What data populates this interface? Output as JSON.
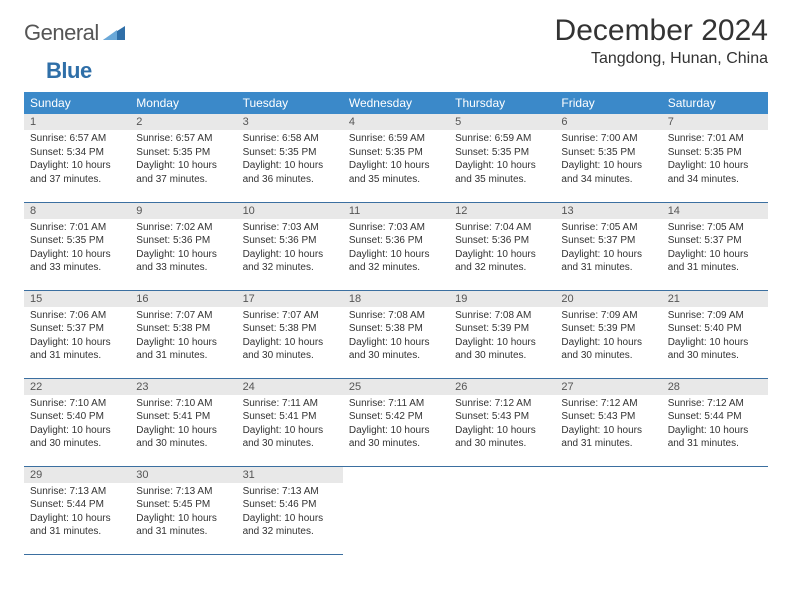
{
  "logo": {
    "word1": "General",
    "word2": "Blue"
  },
  "title": "December 2024",
  "location": "Tangdong, Hunan, China",
  "colors": {
    "header_bg": "#3b89c9",
    "header_text": "#ffffff",
    "daynum_bg": "#e8e8e8",
    "rule": "#3b6fa0",
    "logo_blue": "#2f6fa8"
  },
  "weekdays": [
    "Sunday",
    "Monday",
    "Tuesday",
    "Wednesday",
    "Thursday",
    "Friday",
    "Saturday"
  ],
  "weeks": [
    [
      {
        "n": "1",
        "sr": "Sunrise: 6:57 AM",
        "ss": "Sunset: 5:34 PM",
        "d1": "Daylight: 10 hours",
        "d2": "and 37 minutes."
      },
      {
        "n": "2",
        "sr": "Sunrise: 6:57 AM",
        "ss": "Sunset: 5:35 PM",
        "d1": "Daylight: 10 hours",
        "d2": "and 37 minutes."
      },
      {
        "n": "3",
        "sr": "Sunrise: 6:58 AM",
        "ss": "Sunset: 5:35 PM",
        "d1": "Daylight: 10 hours",
        "d2": "and 36 minutes."
      },
      {
        "n": "4",
        "sr": "Sunrise: 6:59 AM",
        "ss": "Sunset: 5:35 PM",
        "d1": "Daylight: 10 hours",
        "d2": "and 35 minutes."
      },
      {
        "n": "5",
        "sr": "Sunrise: 6:59 AM",
        "ss": "Sunset: 5:35 PM",
        "d1": "Daylight: 10 hours",
        "d2": "and 35 minutes."
      },
      {
        "n": "6",
        "sr": "Sunrise: 7:00 AM",
        "ss": "Sunset: 5:35 PM",
        "d1": "Daylight: 10 hours",
        "d2": "and 34 minutes."
      },
      {
        "n": "7",
        "sr": "Sunrise: 7:01 AM",
        "ss": "Sunset: 5:35 PM",
        "d1": "Daylight: 10 hours",
        "d2": "and 34 minutes."
      }
    ],
    [
      {
        "n": "8",
        "sr": "Sunrise: 7:01 AM",
        "ss": "Sunset: 5:35 PM",
        "d1": "Daylight: 10 hours",
        "d2": "and 33 minutes."
      },
      {
        "n": "9",
        "sr": "Sunrise: 7:02 AM",
        "ss": "Sunset: 5:36 PM",
        "d1": "Daylight: 10 hours",
        "d2": "and 33 minutes."
      },
      {
        "n": "10",
        "sr": "Sunrise: 7:03 AM",
        "ss": "Sunset: 5:36 PM",
        "d1": "Daylight: 10 hours",
        "d2": "and 32 minutes."
      },
      {
        "n": "11",
        "sr": "Sunrise: 7:03 AM",
        "ss": "Sunset: 5:36 PM",
        "d1": "Daylight: 10 hours",
        "d2": "and 32 minutes."
      },
      {
        "n": "12",
        "sr": "Sunrise: 7:04 AM",
        "ss": "Sunset: 5:36 PM",
        "d1": "Daylight: 10 hours",
        "d2": "and 32 minutes."
      },
      {
        "n": "13",
        "sr": "Sunrise: 7:05 AM",
        "ss": "Sunset: 5:37 PM",
        "d1": "Daylight: 10 hours",
        "d2": "and 31 minutes."
      },
      {
        "n": "14",
        "sr": "Sunrise: 7:05 AM",
        "ss": "Sunset: 5:37 PM",
        "d1": "Daylight: 10 hours",
        "d2": "and 31 minutes."
      }
    ],
    [
      {
        "n": "15",
        "sr": "Sunrise: 7:06 AM",
        "ss": "Sunset: 5:37 PM",
        "d1": "Daylight: 10 hours",
        "d2": "and 31 minutes."
      },
      {
        "n": "16",
        "sr": "Sunrise: 7:07 AM",
        "ss": "Sunset: 5:38 PM",
        "d1": "Daylight: 10 hours",
        "d2": "and 31 minutes."
      },
      {
        "n": "17",
        "sr": "Sunrise: 7:07 AM",
        "ss": "Sunset: 5:38 PM",
        "d1": "Daylight: 10 hours",
        "d2": "and 30 minutes."
      },
      {
        "n": "18",
        "sr": "Sunrise: 7:08 AM",
        "ss": "Sunset: 5:38 PM",
        "d1": "Daylight: 10 hours",
        "d2": "and 30 minutes."
      },
      {
        "n": "19",
        "sr": "Sunrise: 7:08 AM",
        "ss": "Sunset: 5:39 PM",
        "d1": "Daylight: 10 hours",
        "d2": "and 30 minutes."
      },
      {
        "n": "20",
        "sr": "Sunrise: 7:09 AM",
        "ss": "Sunset: 5:39 PM",
        "d1": "Daylight: 10 hours",
        "d2": "and 30 minutes."
      },
      {
        "n": "21",
        "sr": "Sunrise: 7:09 AM",
        "ss": "Sunset: 5:40 PM",
        "d1": "Daylight: 10 hours",
        "d2": "and 30 minutes."
      }
    ],
    [
      {
        "n": "22",
        "sr": "Sunrise: 7:10 AM",
        "ss": "Sunset: 5:40 PM",
        "d1": "Daylight: 10 hours",
        "d2": "and 30 minutes."
      },
      {
        "n": "23",
        "sr": "Sunrise: 7:10 AM",
        "ss": "Sunset: 5:41 PM",
        "d1": "Daylight: 10 hours",
        "d2": "and 30 minutes."
      },
      {
        "n": "24",
        "sr": "Sunrise: 7:11 AM",
        "ss": "Sunset: 5:41 PM",
        "d1": "Daylight: 10 hours",
        "d2": "and 30 minutes."
      },
      {
        "n": "25",
        "sr": "Sunrise: 7:11 AM",
        "ss": "Sunset: 5:42 PM",
        "d1": "Daylight: 10 hours",
        "d2": "and 30 minutes."
      },
      {
        "n": "26",
        "sr": "Sunrise: 7:12 AM",
        "ss": "Sunset: 5:43 PM",
        "d1": "Daylight: 10 hours",
        "d2": "and 30 minutes."
      },
      {
        "n": "27",
        "sr": "Sunrise: 7:12 AM",
        "ss": "Sunset: 5:43 PM",
        "d1": "Daylight: 10 hours",
        "d2": "and 31 minutes."
      },
      {
        "n": "28",
        "sr": "Sunrise: 7:12 AM",
        "ss": "Sunset: 5:44 PM",
        "d1": "Daylight: 10 hours",
        "d2": "and 31 minutes."
      }
    ],
    [
      {
        "n": "29",
        "sr": "Sunrise: 7:13 AM",
        "ss": "Sunset: 5:44 PM",
        "d1": "Daylight: 10 hours",
        "d2": "and 31 minutes."
      },
      {
        "n": "30",
        "sr": "Sunrise: 7:13 AM",
        "ss": "Sunset: 5:45 PM",
        "d1": "Daylight: 10 hours",
        "d2": "and 31 minutes."
      },
      {
        "n": "31",
        "sr": "Sunrise: 7:13 AM",
        "ss": "Sunset: 5:46 PM",
        "d1": "Daylight: 10 hours",
        "d2": "and 32 minutes."
      },
      null,
      null,
      null,
      null
    ]
  ]
}
